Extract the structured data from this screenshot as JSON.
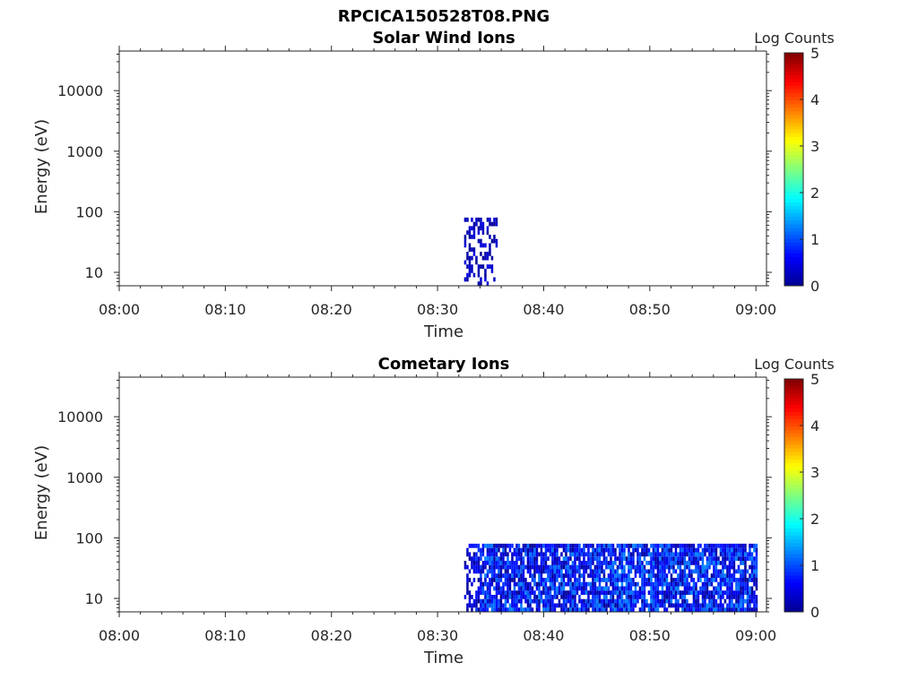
{
  "figure_title": "RPCICA150528T08.PNG",
  "colors": {
    "colormap": [
      "#00008f",
      "#0000ff",
      "#007fff",
      "#00ffff",
      "#7fff7f",
      "#ffff00",
      "#ff7f00",
      "#ff0000",
      "#7f0000"
    ]
  },
  "chart_data": [
    {
      "type": "heatmap",
      "title": "Solar Wind Ions",
      "xlabel": "Time",
      "ylabel": "Energy (eV)",
      "x_ticks": [
        "08:00",
        "08:10",
        "08:20",
        "08:30",
        "08:40",
        "08:50",
        "09:00"
      ],
      "x_range": [
        "08:00",
        "09:01"
      ],
      "y_scale": "log",
      "y_ticks": [
        "10",
        "100",
        "1000",
        "10000"
      ],
      "y_range": [
        6,
        45000
      ],
      "colorbar": {
        "label": "Log Counts",
        "ticks": [
          "0",
          "1",
          "2",
          "3",
          "4",
          "5"
        ],
        "range": [
          0,
          5
        ]
      },
      "data_region": {
        "time_start": "08:32:30",
        "time_end": "08:35:40",
        "energy_min_eV": 6,
        "energy_max_eV": 80,
        "log_counts_typical": [
          0,
          0.5
        ]
      },
      "grid": false
    },
    {
      "type": "heatmap",
      "title": "Cometary Ions",
      "xlabel": "Time",
      "ylabel": "Energy (eV)",
      "x_ticks": [
        "08:00",
        "08:10",
        "08:20",
        "08:30",
        "08:40",
        "08:50",
        "09:00"
      ],
      "x_range": [
        "08:00",
        "09:01"
      ],
      "y_scale": "log",
      "y_ticks": [
        "10",
        "100",
        "1000",
        "10000"
      ],
      "y_range": [
        6,
        45000
      ],
      "colorbar": {
        "label": "Log Counts",
        "ticks": [
          "0",
          "1",
          "2",
          "3",
          "4",
          "5"
        ],
        "range": [
          0,
          5
        ]
      },
      "data_region": {
        "time_start": "08:32:30",
        "time_end": "09:00:10",
        "energy_min_eV": 6,
        "energy_max_eV": 80,
        "log_counts_typical": [
          0,
          1.3
        ]
      },
      "grid": false
    }
  ]
}
